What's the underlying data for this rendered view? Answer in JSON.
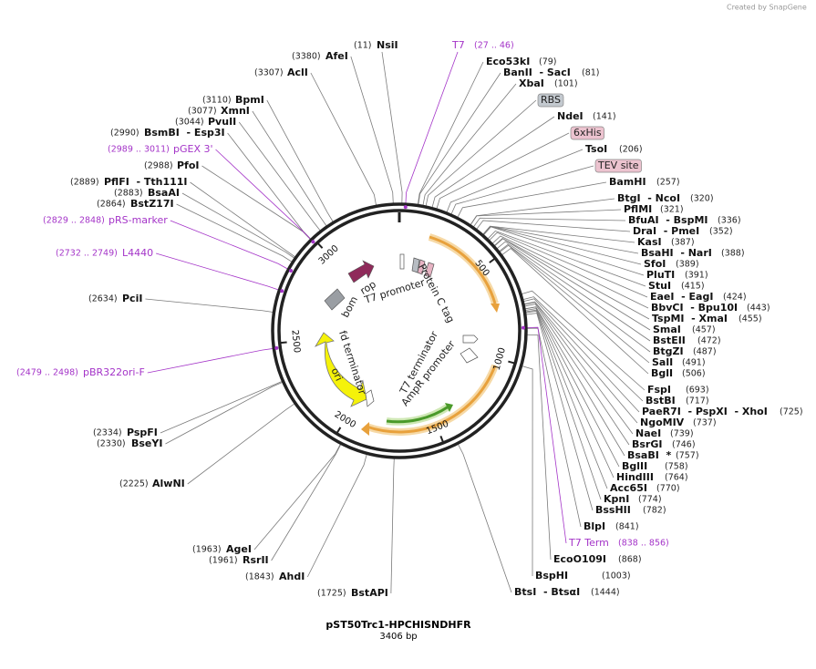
{
  "header": {
    "credit": "Created by SnapGene"
  },
  "title": "pST50Trc1-HPCHISNDHFR",
  "length": "3406 bp",
  "sites": [
    {
      "name": "NsiI",
      "pos": {
        "value": 11,
        "label": "(11)"
      }
    },
    {
      "name": "Eco53kI",
      "pos": {
        "value": 79,
        "label": "(79)"
      }
    },
    {
      "name": "BanII  - SacI",
      "pos": {
        "value": 81,
        "label": "(81)"
      }
    },
    {
      "name": "XbaI",
      "pos": {
        "value": 101,
        "label": "(101)"
      }
    },
    {
      "name": "NdeI",
      "pos": {
        "value": 141,
        "label": "(141)"
      }
    },
    {
      "name": "TsoI",
      "pos": {
        "value": 206,
        "label": "(206)"
      }
    },
    {
      "name": "BamHI",
      "pos": {
        "value": 257,
        "label": "(257)"
      }
    },
    {
      "name": "BtgI  - NcoI",
      "pos": {
        "value": 320,
        "label": "(320)"
      }
    },
    {
      "name": "PflMI",
      "pos": {
        "value": 321,
        "label": "(321)"
      }
    },
    {
      "name": "BfuAI  - BspMI",
      "pos": {
        "value": 336,
        "label": "(336)"
      }
    },
    {
      "name": "DraI  - PmeI",
      "pos": {
        "value": 352,
        "label": "(352)"
      }
    },
    {
      "name": "KasI",
      "pos": {
        "value": 387,
        "label": "(387)"
      }
    },
    {
      "name": "BsaHI  - NarI",
      "pos": {
        "value": 388,
        "label": "(388)"
      }
    },
    {
      "name": "SfoI",
      "pos": {
        "value": 389,
        "label": "(389)"
      }
    },
    {
      "name": "PluTI",
      "pos": {
        "value": 391,
        "label": "(391)"
      }
    },
    {
      "name": "StuI",
      "pos": {
        "value": 415,
        "label": "(415)"
      }
    },
    {
      "name": "EaeI  - EagI",
      "pos": {
        "value": 424,
        "label": "(424)"
      }
    },
    {
      "name": "BbvCI  - Bpu10I",
      "pos": {
        "value": 443,
        "label": "(443)"
      }
    },
    {
      "name": "TspMI  - XmaI",
      "pos": {
        "value": 455,
        "label": "(455)"
      }
    },
    {
      "name": "SmaI",
      "pos": {
        "value": 457,
        "label": "(457)"
      }
    },
    {
      "name": "BstEII",
      "pos": {
        "value": 472,
        "label": "(472)"
      }
    },
    {
      "name": "BtgZI",
      "pos": {
        "value": 487,
        "label": "(487)"
      }
    },
    {
      "name": "SalI",
      "pos": {
        "value": 491,
        "label": "(491)"
      }
    },
    {
      "name": "BglI",
      "pos": {
        "value": 506,
        "label": "(506)"
      }
    },
    {
      "name": "FspI",
      "pos": {
        "value": 693,
        "label": "(693)"
      }
    },
    {
      "name": "BstBI",
      "pos": {
        "value": 717,
        "label": "(717)"
      }
    },
    {
      "name": "PaeR7I  - PspXI  - XhoI",
      "pos": {
        "value": 725,
        "label": "(725)"
      }
    },
    {
      "name": "NgoMIV",
      "pos": {
        "value": 737,
        "label": "(737)"
      }
    },
    {
      "name": "NaeI",
      "pos": {
        "value": 739,
        "label": "(739)"
      }
    },
    {
      "name": "BsrGI",
      "pos": {
        "value": 746,
        "label": "(746)"
      }
    },
    {
      "name": "BsaBI  *",
      "pos": {
        "value": 757,
        "label": "(757)"
      }
    },
    {
      "name": "BglII",
      "pos": {
        "value": 758,
        "label": "(758)"
      }
    },
    {
      "name": "HindIII",
      "pos": {
        "value": 764,
        "label": "(764)"
      }
    },
    {
      "name": "Acc65I",
      "pos": {
        "value": 770,
        "label": "(770)"
      }
    },
    {
      "name": "KpnI",
      "pos": {
        "value": 774,
        "label": "(774)"
      }
    },
    {
      "name": "BssHII",
      "pos": {
        "value": 782,
        "label": "(782)"
      }
    },
    {
      "name": "BlpI",
      "pos": {
        "value": 841,
        "label": "(841)"
      }
    },
    {
      "name": "EcoO109I",
      "pos": {
        "value": 868,
        "label": "(868)"
      }
    },
    {
      "name": "BspHI",
      "pos": {
        "value": 1003,
        "label": "(1003)"
      }
    },
    {
      "name": "BtsI  - BtsαI",
      "pos": {
        "value": 1444,
        "label": "(1444)"
      }
    },
    {
      "name": "AfeI",
      "pos": {
        "value": 3380,
        "label": "(3380)"
      }
    },
    {
      "name": "AclI",
      "pos": {
        "value": 3307,
        "label": "(3307)"
      }
    },
    {
      "name": "BpmI",
      "pos": {
        "value": 3110,
        "label": "(3110)"
      }
    },
    {
      "name": "XmnI",
      "pos": {
        "value": 3077,
        "label": "(3077)"
      }
    },
    {
      "name": "PvuII",
      "pos": {
        "value": 3044,
        "label": "(3044)"
      }
    },
    {
      "name": "BsmBI  - Esp3I",
      "pos": {
        "value": 2990,
        "label": "(2990)"
      }
    },
    {
      "name": "PfoI",
      "pos": {
        "value": 2988,
        "label": "(2988)"
      }
    },
    {
      "name": "PflFI  - Tth111I",
      "pos": {
        "value": 2889,
        "label": "(2889)"
      }
    },
    {
      "name": "BsaAI",
      "pos": {
        "value": 2883,
        "label": "(2883)"
      }
    },
    {
      "name": "BstZ17I",
      "pos": {
        "value": 2864,
        "label": "(2864)"
      }
    },
    {
      "name": "PciI",
      "pos": {
        "value": 2634,
        "label": "(2634)"
      }
    },
    {
      "name": "PspFI",
      "pos": {
        "value": 2334,
        "label": "(2334)"
      }
    },
    {
      "name": "BseYI",
      "pos": {
        "value": 2330,
        "label": "(2330)"
      }
    },
    {
      "name": "AlwNI",
      "pos": {
        "value": 2225,
        "label": "(2225)"
      }
    },
    {
      "name": "AgeI",
      "pos": {
        "value": 1963,
        "label": "(1963)"
      }
    },
    {
      "name": "RsrII",
      "pos": {
        "value": 1961,
        "label": "(1961)"
      }
    },
    {
      "name": "AhdI",
      "pos": {
        "value": 1843,
        "label": "(1843)"
      }
    },
    {
      "name": "BstAPI",
      "pos": {
        "value": 1725,
        "label": "(1725)"
      }
    }
  ],
  "features": [
    {
      "name": "T7",
      "pos": {
        "start": 27,
        "end": 46,
        "label": "(27 .. 46)"
      }
    },
    {
      "name": "T7 Term",
      "pos": {
        "start": 838,
        "end": 856,
        "label": "(838 .. 856)"
      }
    },
    {
      "name": "pGEX 3'",
      "pos": {
        "start": 2989,
        "end": 3011,
        "label": "(2989 .. 3011)"
      }
    },
    {
      "name": "pRS-marker",
      "pos": {
        "start": 2829,
        "end": 2848,
        "label": "(2829 .. 2848)"
      }
    },
    {
      "name": "L4440",
      "pos": {
        "start": 2732,
        "end": 2749,
        "label": "(2732 .. 2749)"
      }
    },
    {
      "name": "pBR322ori-F",
      "pos": {
        "start": 2479,
        "end": 2498,
        "label": "(2479 .. 2498)"
      }
    }
  ],
  "boxes": [
    "RBS",
    "6xHis",
    "TEV site"
  ],
  "map_labels": [
    "Protein C tag",
    "T7 promoter",
    "rop",
    "bom",
    "fd terminator",
    "ori",
    "T7 terminator",
    "AmpR promoter"
  ],
  "ticks": [
    500,
    1000,
    1500,
    2000,
    2500,
    3000
  ],
  "total": 3406
}
